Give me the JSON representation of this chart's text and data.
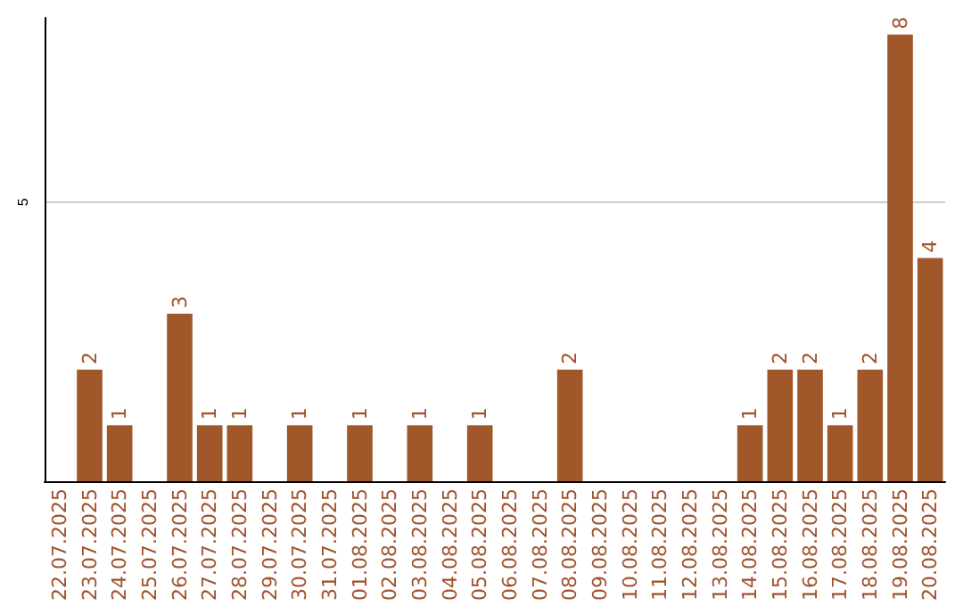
{
  "chart_data": {
    "type": "bar",
    "categories": [
      "22.07.2025",
      "23.07.2025",
      "24.07.2025",
      "25.07.2025",
      "26.07.2025",
      "27.07.2025",
      "28.07.2025",
      "29.07.2025",
      "30.07.2025",
      "31.07.2025",
      "01.08.2025",
      "02.08.2025",
      "03.08.2025",
      "04.08.2025",
      "05.08.2025",
      "06.08.2025",
      "07.08.2025",
      "08.08.2025",
      "09.08.2025",
      "10.08.2025",
      "11.08.2025",
      "12.08.2025",
      "13.08.2025",
      "14.08.2025",
      "15.08.2025",
      "16.08.2025",
      "17.08.2025",
      "18.08.2025",
      "19.08.2025",
      "20.08.2025"
    ],
    "values": [
      0,
      2,
      1,
      0,
      3,
      1,
      1,
      0,
      1,
      0,
      1,
      0,
      1,
      0,
      1,
      0,
      0,
      2,
      0,
      0,
      0,
      0,
      0,
      1,
      2,
      2,
      1,
      2,
      8,
      4
    ],
    "value_labels": [
      null,
      "2",
      "1",
      null,
      "3",
      "1",
      "1",
      null,
      "1",
      null,
      "1",
      null,
      "1",
      null,
      "1",
      null,
      null,
      "2",
      null,
      null,
      null,
      null,
      null,
      "1",
      "2",
      "2",
      "1",
      "2",
      "8",
      "4"
    ],
    "color": "#a0582b",
    "ylim": [
      0,
      8.3
    ],
    "yticks": [
      5
    ],
    "grid": "y"
  }
}
